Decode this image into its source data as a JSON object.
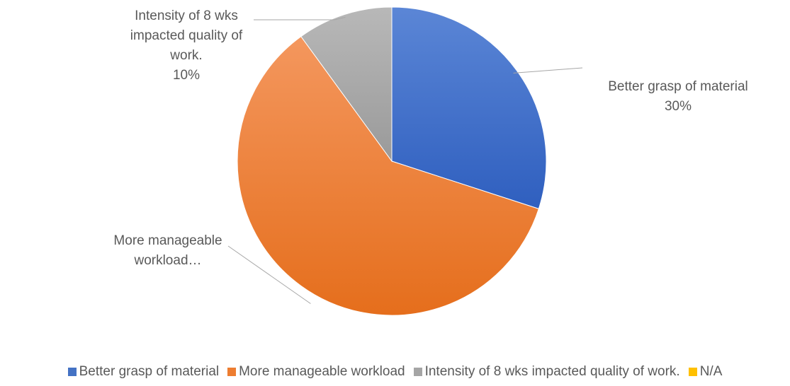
{
  "chart_data": {
    "type": "pie",
    "title": "",
    "categories": [
      "Better grasp of material",
      "More manageable workload",
      "Intensity of 8 wks impacted quality of work.",
      "N/A"
    ],
    "values": [
      30,
      60,
      10,
      0
    ],
    "colors": [
      "#4472C4",
      "#ED7D31",
      "#A5A5A5",
      "#FFC000"
    ],
    "data_labels": [
      [
        "Better grasp of material",
        "30%"
      ],
      [
        "More manageable",
        "workload…"
      ],
      [
        "Intensity of 8 wks",
        "impacted quality of",
        "work.",
        "10%"
      ],
      []
    ],
    "legend_position": "bottom"
  }
}
